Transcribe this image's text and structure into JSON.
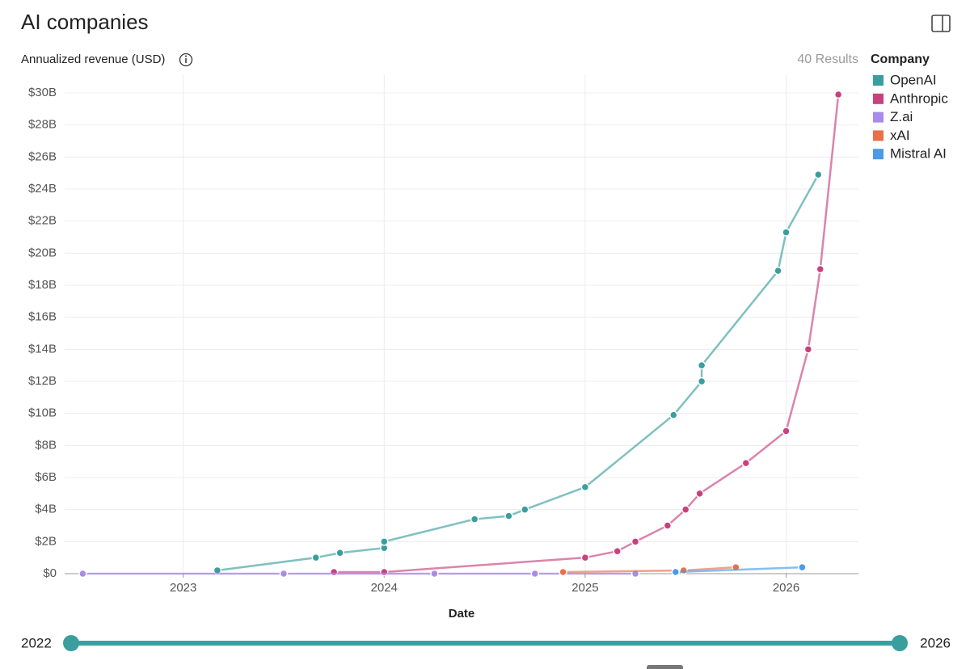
{
  "chart_data": {
    "type": "line",
    "title": "AI companies",
    "ylabel": "Annualized revenue (USD)",
    "xlabel": "Date",
    "legend_title": "Company",
    "legend": "right",
    "grid": true,
    "xlim": [
      2022.41,
      2026.36
    ],
    "xticks": [
      2023,
      2024,
      2025,
      2026
    ],
    "ylim": [
      0,
      30
    ],
    "yticks": [
      {
        "value": 0,
        "label": "$0"
      },
      {
        "value": 2,
        "label": "$2B"
      },
      {
        "value": 4,
        "label": "$4B"
      },
      {
        "value": 6,
        "label": "$6B"
      },
      {
        "value": 8,
        "label": "$8B"
      },
      {
        "value": 10,
        "label": "$10B"
      },
      {
        "value": 12,
        "label": "$12B"
      },
      {
        "value": 14,
        "label": "$14B"
      },
      {
        "value": 16,
        "label": "$16B"
      },
      {
        "value": 18,
        "label": "$18B"
      },
      {
        "value": 20,
        "label": "$20B"
      },
      {
        "value": 22,
        "label": "$22B"
      },
      {
        "value": 24,
        "label": "$24B"
      },
      {
        "value": 26,
        "label": "$26B"
      },
      {
        "value": 28,
        "label": "$28B"
      },
      {
        "value": 30,
        "label": "$30B"
      }
    ],
    "series": [
      {
        "name": "OpenAI",
        "color": "#3a9e9e",
        "x": [
          2023.17,
          2023.66,
          2023.78,
          2024.0,
          2024.0,
          2024.45,
          2024.62,
          2024.7,
          2025.0,
          2025.44,
          2025.58,
          2025.58,
          2025.96,
          2026.0,
          2026.16
        ],
        "values": [
          0.2,
          1.0,
          1.3,
          1.6,
          2.0,
          3.4,
          3.6,
          4.0,
          5.4,
          9.9,
          12,
          13,
          18.9,
          21.3,
          24.9
        ]
      },
      {
        "name": "Anthropic",
        "color": "#c9407f",
        "x": [
          2023.75,
          2024.0,
          2025.0,
          2025.16,
          2025.25,
          2025.41,
          2025.5,
          2025.57,
          2025.8,
          2026.0,
          2026.11,
          2026.17,
          2026.26
        ],
        "values": [
          0.1,
          0.1,
          1.0,
          1.4,
          2.0,
          3.0,
          4.0,
          5.0,
          6.9,
          8.9,
          14,
          19,
          29.9
        ]
      },
      {
        "name": "Z.ai",
        "color": "#a98be8",
        "x": [
          2022.5,
          2023.5,
          2024.25,
          2024.75,
          2025.25
        ],
        "values": [
          0,
          0,
          0,
          0,
          0
        ]
      },
      {
        "name": "xAI",
        "color": "#e8704a",
        "x": [
          2024.89,
          2025.49,
          2025.75
        ],
        "values": [
          0.1,
          0.2,
          0.4
        ]
      },
      {
        "name": "Mistral AI",
        "color": "#4a9ae8",
        "x": [
          2025.45,
          2026.08
        ],
        "values": [
          0.1,
          0.4
        ]
      }
    ]
  },
  "ui": {
    "results": "40 Results",
    "slider": {
      "min_label": "2022",
      "max_label": "2026"
    }
  }
}
